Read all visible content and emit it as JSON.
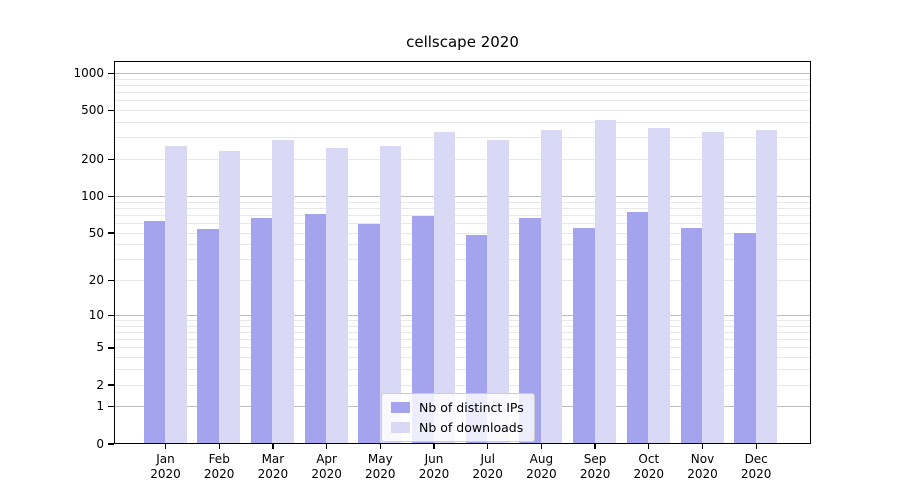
{
  "title": "cellscape 2020",
  "chart_data": {
    "type": "bar",
    "title": "cellscape 2020",
    "categories": [
      "Jan",
      "Feb",
      "Mar",
      "Apr",
      "May",
      "Jun",
      "Jul",
      "Aug",
      "Sep",
      "Oct",
      "Nov",
      "Dec"
    ],
    "category_year": "2020",
    "series": [
      {
        "name": "Nb of distinct IPs",
        "color": "#a4a4ee",
        "values": [
          64,
          55,
          67,
          72,
          60,
          70,
          49,
          67,
          56,
          75,
          56,
          51
        ]
      },
      {
        "name": "Nb of downloads",
        "color": "#d9d9f6",
        "values": [
          260,
          235,
          290,
          250,
          258,
          340,
          290,
          350,
          425,
          365,
          335,
          350
        ]
      }
    ],
    "xlabel": "",
    "ylabel": "",
    "yscale": "log1p",
    "ylim": [
      0,
      1258
    ],
    "yticks": [
      0,
      1,
      2,
      5,
      10,
      20,
      50,
      100,
      200,
      500,
      1000
    ],
    "grid": true,
    "legend_position": "lower center"
  },
  "colors": {
    "background": "#ffffff",
    "major_grid": "#bcbcbc",
    "minor_grid": "#e8e8e8",
    "spine": "#000000",
    "text": "#000000"
  }
}
